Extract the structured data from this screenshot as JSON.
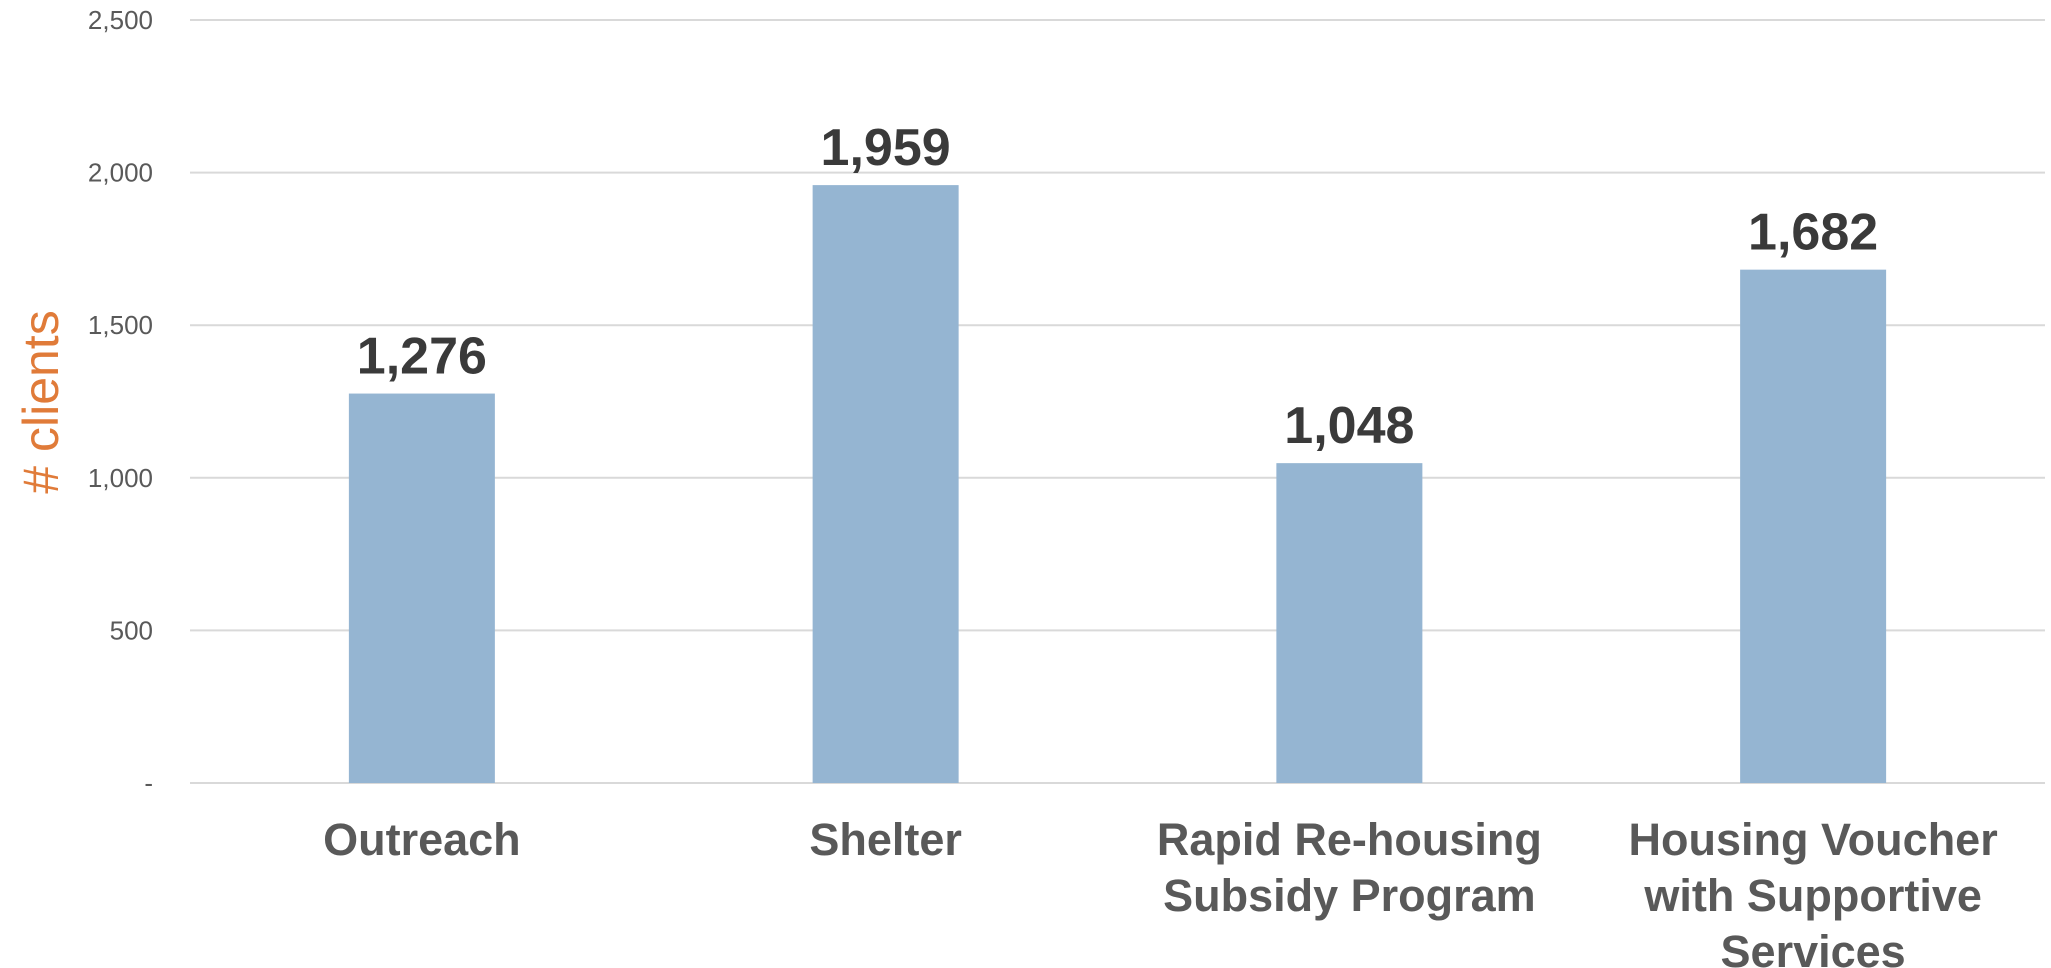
{
  "chart_data": {
    "type": "bar",
    "title": "",
    "xlabel": "",
    "ylabel": "# clients",
    "ylim": [
      0,
      2500
    ],
    "yticks": [
      0,
      500,
      1000,
      1500,
      2000,
      2500
    ],
    "ytick_labels": [
      "-",
      "500",
      "1,000",
      "1,500",
      "2,000",
      "2,500"
    ],
    "categories": [
      [
        "Outreach"
      ],
      [
        "Shelter"
      ],
      [
        "Rapid Re-housing",
        "Subsidy Program"
      ],
      [
        "Housing Voucher",
        "with Supportive",
        "Services"
      ]
    ],
    "values": [
      1276,
      1959,
      1048,
      1682
    ],
    "value_labels": [
      "1,276",
      "1,959",
      "1,048",
      "1,682"
    ],
    "grid": true,
    "legend": "none",
    "colors": {
      "bar": "#95b5d2",
      "axis_title": "#e07b39",
      "gridline": "#d9d9d9",
      "data_label": "#3a3a3a",
      "category_label": "#595959",
      "tick_label": "#595959"
    }
  }
}
